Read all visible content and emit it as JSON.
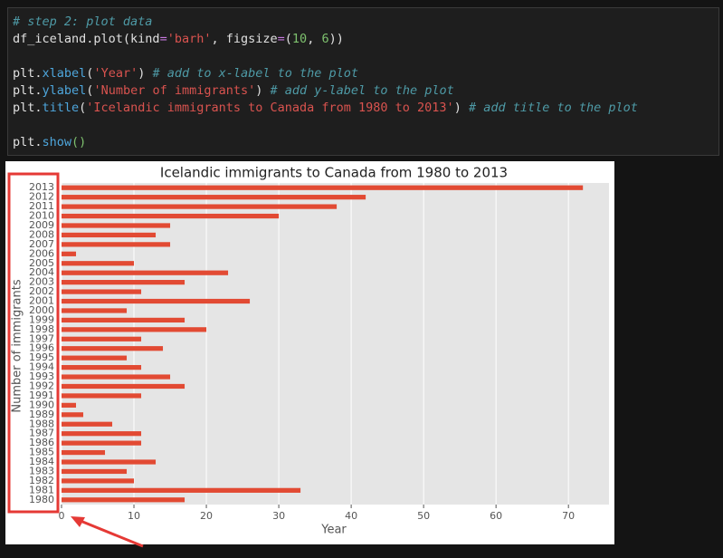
{
  "code": {
    "lines": [
      [
        {
          "text": "# step 2: plot data",
          "color": "#4e9aa6",
          "italic": true
        }
      ],
      [
        {
          "text": "df_iceland.plot(kind",
          "color": "#e0e0e0"
        },
        {
          "text": "=",
          "color": "#c678dd"
        },
        {
          "text": "'barh'",
          "color": "#d9534f"
        },
        {
          "text": ", figsize",
          "color": "#e0e0e0"
        },
        {
          "text": "=",
          "color": "#c678dd"
        },
        {
          "text": "(",
          "color": "#e0e0e0"
        },
        {
          "text": "10",
          "color": "#7ec16e"
        },
        {
          "text": ", ",
          "color": "#e0e0e0"
        },
        {
          "text": "6",
          "color": "#7ec16e"
        },
        {
          "text": "))",
          "color": "#e0e0e0"
        }
      ],
      [],
      [
        {
          "text": "plt.",
          "color": "#e0e0e0"
        },
        {
          "text": "xlabel",
          "color": "#4ea6dc"
        },
        {
          "text": "(",
          "color": "#e0e0e0"
        },
        {
          "text": "'Year'",
          "color": "#d9534f"
        },
        {
          "text": ") ",
          "color": "#e0e0e0"
        },
        {
          "text": "# add to x-label to the plot",
          "color": "#4e9aa6",
          "italic": true
        }
      ],
      [
        {
          "text": "plt.",
          "color": "#e0e0e0"
        },
        {
          "text": "ylabel",
          "color": "#4ea6dc"
        },
        {
          "text": "(",
          "color": "#e0e0e0"
        },
        {
          "text": "'Number of immigrants'",
          "color": "#d9534f"
        },
        {
          "text": ") ",
          "color": "#e0e0e0"
        },
        {
          "text": "# add y-label to the plot",
          "color": "#4e9aa6",
          "italic": true
        }
      ],
      [
        {
          "text": "plt.",
          "color": "#e0e0e0"
        },
        {
          "text": "title",
          "color": "#4ea6dc"
        },
        {
          "text": "(",
          "color": "#e0e0e0"
        },
        {
          "text": "'Icelandic immigrants to Canada from 1980 to 2013'",
          "color": "#d9534f"
        },
        {
          "text": ") ",
          "color": "#e0e0e0"
        },
        {
          "text": "# add title to the plot",
          "color": "#4e9aa6",
          "italic": true
        }
      ],
      [],
      [
        {
          "text": "plt.",
          "color": "#e0e0e0"
        },
        {
          "text": "show",
          "color": "#4ea6dc"
        },
        {
          "text": "()",
          "color": "#7ec16e"
        }
      ]
    ]
  },
  "chart_data": {
    "type": "barh",
    "title": "Icelandic immigrants to Canada from 1980 to 2013",
    "x_label": "Year",
    "y_label": "Number of immigrants",
    "categories": [
      "1980",
      "1981",
      "1982",
      "1983",
      "1984",
      "1985",
      "1986",
      "1987",
      "1988",
      "1989",
      "1990",
      "1991",
      "1992",
      "1993",
      "1994",
      "1995",
      "1996",
      "1997",
      "1998",
      "1999",
      "2000",
      "2001",
      "2002",
      "2003",
      "2004",
      "2005",
      "2006",
      "2007",
      "2008",
      "2009",
      "2010",
      "2011",
      "2012",
      "2013"
    ],
    "values": [
      17,
      33,
      10,
      9,
      13,
      6,
      11,
      11,
      7,
      3,
      2,
      11,
      17,
      15,
      11,
      9,
      14,
      11,
      20,
      17,
      9,
      26,
      11,
      17,
      23,
      10,
      2,
      15,
      13,
      15,
      30,
      38,
      42,
      72
    ],
    "color": "#e24a33",
    "xlim": [
      0,
      75.6
    ],
    "xticks": [
      0,
      10,
      20,
      30,
      40,
      50,
      60,
      70
    ],
    "grid": true
  }
}
